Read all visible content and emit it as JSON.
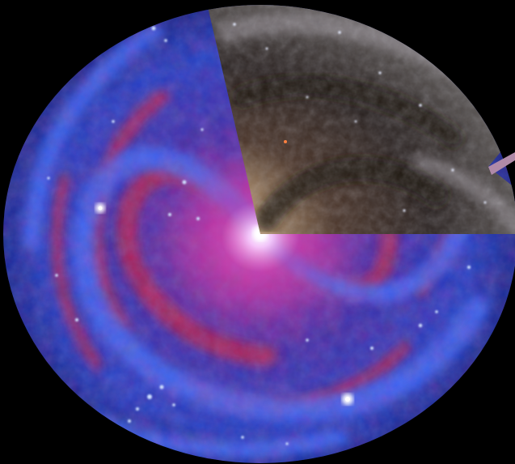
{
  "scene": {
    "subject": "spiral-galaxy-composite",
    "background_color": "#000000",
    "overlay_views": [
      "false-color-multiwavelength",
      "visible-light-wedge"
    ],
    "palette": {
      "blue_arm": "#2b4fd6",
      "deep_blue": "#0d1a80",
      "magenta_core": "#b02a8a",
      "red_dust": "#c0203a",
      "hot_star": "#ffffff",
      "visible_dust": "#3a2a22",
      "visible_glow": "#b89870",
      "pointer_bar": "#b08aa8"
    }
  }
}
